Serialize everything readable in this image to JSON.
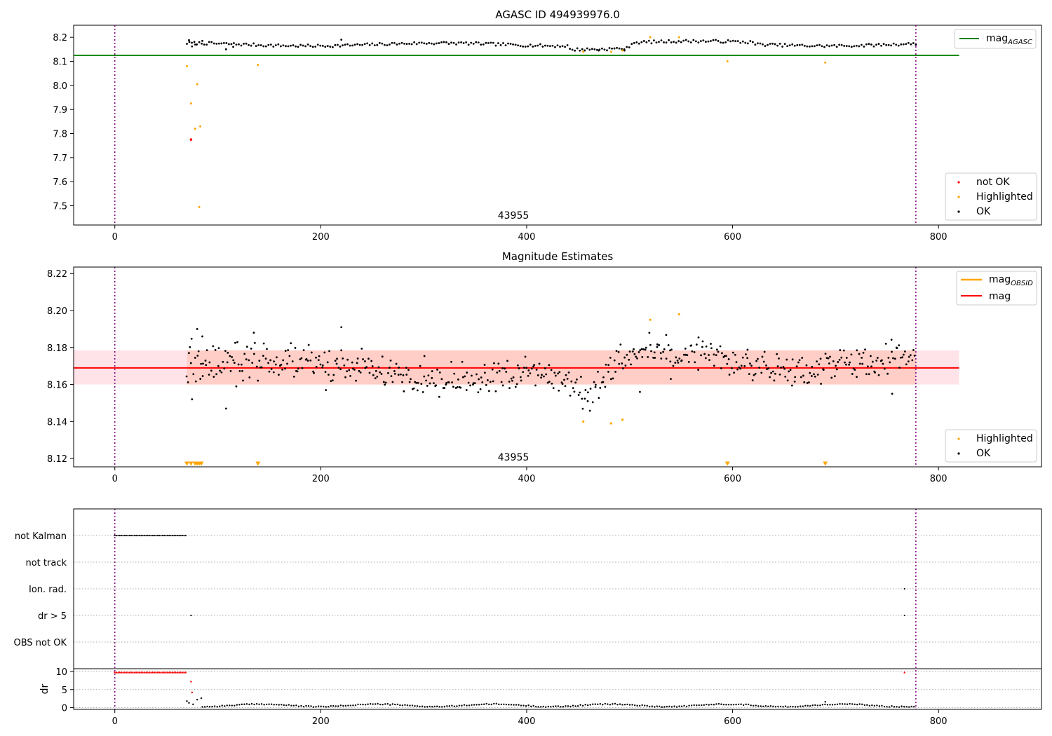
{
  "chart_data": [
    {
      "type": "scatter",
      "title": "AGASC ID 494939976.0",
      "annotation": "43955",
      "xlim": [
        -40,
        900
      ],
      "ylim": [
        7.42,
        8.25
      ],
      "xticks": [
        0,
        200,
        400,
        600,
        800
      ],
      "yticks": [
        7.5,
        7.6,
        7.7,
        7.8,
        7.9,
        8.0,
        8.1,
        8.2
      ],
      "ytick_labels": [
        "7.5",
        "7.6",
        "7.7",
        "7.8",
        "7.9",
        "8.0",
        "8.1",
        "8.2"
      ],
      "vlines": [
        0,
        778
      ],
      "hline": {
        "name": "mag_AGASC",
        "label_main": "mag",
        "label_sub": "AGASC",
        "y": 8.125,
        "x0": -40,
        "x1": 820,
        "color": "#008000"
      },
      "ok_track": {
        "x_start": 70,
        "x_end": 778,
        "step": 2.4,
        "base": 8.17,
        "amp": 0.006
      },
      "ok_extra": [
        [
          72,
          8.188
        ],
        [
          75,
          8.162
        ],
        [
          78,
          8.17
        ],
        [
          85,
          8.185
        ],
        [
          108,
          8.15
        ],
        [
          115,
          8.16
        ],
        [
          220,
          8.19
        ],
        [
          470,
          8.145
        ],
        [
          495,
          8.145
        ]
      ],
      "highlighted": [
        [
          70,
          8.08
        ],
        [
          74,
          7.925
        ],
        [
          78,
          7.82
        ],
        [
          80,
          8.005
        ],
        [
          82,
          7.495
        ],
        [
          83,
          7.83
        ],
        [
          139,
          8.085
        ],
        [
          455,
          8.14
        ],
        [
          482,
          8.14
        ],
        [
          493,
          8.145
        ],
        [
          520,
          8.2
        ],
        [
          548,
          8.2
        ],
        [
          595,
          8.1
        ],
        [
          690,
          8.095
        ]
      ],
      "not_ok": [
        [
          74,
          7.775
        ]
      ],
      "legend_line": {
        "label_main": "mag",
        "label_sub": "AGASC",
        "position": "upper right"
      },
      "legend_points": {
        "position": "lower right",
        "entries": [
          {
            "label": "not OK",
            "color": "#ff0000"
          },
          {
            "label": "Highlighted",
            "color": "#ffa500"
          },
          {
            "label": "OK",
            "color": "#000000"
          }
        ]
      },
      "colors": {
        "ok": "#000000",
        "highlighted": "#ffa500",
        "not_ok": "#ff0000",
        "vline": "#800080"
      }
    },
    {
      "type": "scatter",
      "title": "Magnitude Estimates",
      "annotation": "43955",
      "xlim": [
        -40,
        900
      ],
      "ylim": [
        8.1155,
        8.2235
      ],
      "xticks": [
        0,
        200,
        400,
        600,
        800
      ],
      "yticks": [
        8.12,
        8.14,
        8.16,
        8.18,
        8.2,
        8.22
      ],
      "ytick_labels": [
        "8.12",
        "8.14",
        "8.16",
        "8.18",
        "8.20",
        "8.22"
      ],
      "vlines": [
        0,
        778
      ],
      "mag_line": {
        "y": 8.169,
        "x0": -40,
        "x1": 820,
        "color": "#ff0000"
      },
      "band_pink": {
        "y0": 8.16,
        "y1": 8.1785,
        "x0": -40,
        "x1": 820,
        "color": "#ffc0cb"
      },
      "band_orange": {
        "y0": 8.16,
        "y1": 8.1785,
        "x0": 70,
        "x1": 778,
        "color": "#ffa07a"
      },
      "segments": [
        [
          70,
          8.171,
          12
        ],
        [
          120,
          8.172,
          11
        ],
        [
          180,
          8.172,
          11
        ],
        [
          240,
          8.169,
          10
        ],
        [
          290,
          8.163,
          10
        ],
        [
          340,
          8.161,
          10
        ],
        [
          400,
          8.166,
          10
        ],
        [
          440,
          8.162,
          10
        ],
        [
          460,
          8.153,
          10
        ],
        [
          500,
          8.178,
          10
        ],
        [
          560,
          8.177,
          10
        ],
        [
          620,
          8.171,
          9
        ],
        [
          660,
          8.166,
          9
        ],
        [
          700,
          8.171,
          9
        ],
        [
          760,
          8.174,
          10
        ],
        [
          778,
          8.174,
          10
        ]
      ],
      "ok_extra": [
        [
          72,
          8.177
        ],
        [
          75,
          8.152
        ],
        [
          80,
          8.19
        ],
        [
          85,
          8.186
        ],
        [
          108,
          8.147
        ],
        [
          118,
          8.159
        ],
        [
          135,
          8.188
        ],
        [
          205,
          8.157
        ],
        [
          220,
          8.191
        ],
        [
          510,
          8.156
        ],
        [
          540,
          8.163
        ],
        [
          755,
          8.155
        ]
      ],
      "highlighted": [
        [
          455,
          8.14
        ],
        [
          482,
          8.139
        ],
        [
          493,
          8.141
        ],
        [
          520,
          8.195
        ],
        [
          548,
          8.198
        ]
      ],
      "highlighted_markers": [
        70,
        74,
        78,
        80,
        82,
        84,
        139,
        595,
        690
      ],
      "legend_line": {
        "position": "upper right",
        "entries": [
          {
            "label_main": "mag",
            "label_sub": "OBSID",
            "color": "#ffa500"
          },
          {
            "label_main": "mag",
            "label_sub": "",
            "color": "#ff0000"
          }
        ]
      },
      "legend_points": {
        "position": "lower right",
        "entries": [
          {
            "label": "Highlighted",
            "color": "#ffa500"
          },
          {
            "label": "OK",
            "color": "#000000"
          }
        ]
      },
      "colors": {
        "ok": "#000000",
        "highlighted": "#ffa500",
        "vline": "#800080"
      }
    },
    {
      "type": "scatter",
      "xlim": [
        -40,
        900
      ],
      "xticks": [
        0,
        200,
        400,
        600,
        800
      ],
      "vlines": [
        0,
        778
      ],
      "flag_rows": [
        "not Kalman",
        "not track",
        "Ion. rad.",
        "dr > 5",
        "OBS not OK"
      ],
      "flags": {
        "not Kalman": {
          "x_start": 0,
          "x_end": 70,
          "step": 1.6
        },
        "Ion. rad.": {
          "points": [
            767
          ]
        },
        "dr > 5": {
          "points": [
            74,
            767
          ]
        }
      },
      "dr": {
        "ylabel": "dr",
        "ylim": [
          -0.5,
          10.8
        ],
        "yticks": [
          0,
          5,
          10
        ],
        "clipped": {
          "x_start": 0,
          "x_end": 70,
          "step": 1.6,
          "y": 9.8
        },
        "clipped_extra": [
          [
            767,
            9.8
          ]
        ],
        "red_points": [
          [
            74,
            7.2
          ],
          [
            75,
            4.2
          ]
        ],
        "track": {
          "x_start": 85,
          "x_end": 778,
          "step": 2.4,
          "base": 0.6,
          "amp": 0.35
        },
        "early": [
          [
            70,
            1.8
          ],
          [
            72,
            1.3
          ],
          [
            76,
            0.9
          ],
          [
            80,
            2.2
          ],
          [
            84,
            2.6
          ],
          [
            690,
            1.6
          ]
        ]
      },
      "colors": {
        "ok": "#000000",
        "not_ok": "#ff0000",
        "vline": "#800080"
      }
    }
  ]
}
